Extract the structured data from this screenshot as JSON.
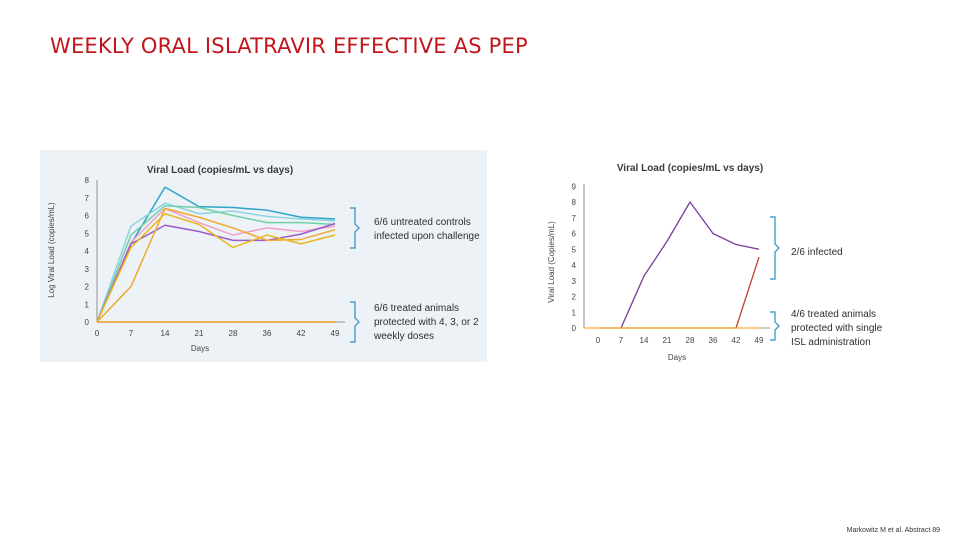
{
  "slide": {
    "title": "WEEKLY ORAL ISLATRAVIR EFFECTIVE AS PEP",
    "citation": "Markowitz M et al. Abstract 89"
  },
  "chart_data": [
    {
      "type": "line",
      "title": "Viral Load (copies/mL vs days)",
      "xlabel": "Days",
      "ylabel": "Log Viral Load (copies/mL)",
      "x": [
        0,
        7,
        14,
        21,
        28,
        36,
        42,
        49
      ],
      "yticks": [
        0,
        1,
        2,
        3,
        4,
        5,
        6,
        7,
        8
      ],
      "ylim": [
        0,
        8
      ],
      "grid": false,
      "series": [
        {
          "color": "#2fa3c8",
          "values": [
            0,
            4.4,
            7.6,
            6.5,
            6.45,
            6.3,
            5.9,
            5.8
          ]
        },
        {
          "color": "#8cd3e0",
          "values": [
            0,
            5.4,
            6.7,
            6.1,
            6.25,
            5.95,
            5.8,
            5.7
          ]
        },
        {
          "color": "#6fd1a6",
          "values": [
            0,
            4.9,
            6.55,
            6.45,
            6.0,
            5.6,
            5.6,
            5.5
          ]
        },
        {
          "color": "#f0a0c8",
          "values": [
            0,
            4.5,
            6.4,
            5.6,
            4.9,
            5.3,
            5.1,
            5.4
          ]
        },
        {
          "color": "#9a5cc8",
          "values": [
            0,
            4.4,
            5.45,
            5.1,
            4.6,
            4.6,
            4.95,
            5.55
          ]
        },
        {
          "color": "#f0a830",
          "values": [
            0,
            2.0,
            6.4,
            5.9,
            5.3,
            4.6,
            4.65,
            5.2
          ]
        },
        {
          "color": "#e8b820",
          "values": [
            0,
            4.2,
            6.1,
            5.5,
            4.2,
            4.9,
            4.4,
            4.9
          ]
        },
        {
          "color": "#e89820",
          "values": [
            0,
            0,
            0,
            0,
            0,
            0,
            0,
            0
          ]
        }
      ],
      "annotations": [
        {
          "lines": [
            "6/6 untreated controls",
            "infected upon challenge"
          ]
        },
        {
          "lines": [
            "6/6 treated animals",
            "protected with 4, 3, or 2",
            "weekly doses"
          ]
        }
      ]
    },
    {
      "type": "line",
      "title": "Viral Load (copies/mL vs days)",
      "xlabel": "Days",
      "ylabel": "Viral Load (Copies/mL)",
      "x": [
        0,
        7,
        14,
        21,
        28,
        36,
        42,
        49
      ],
      "yticks": [
        0,
        1,
        2,
        3,
        4,
        5,
        6,
        7,
        8,
        9
      ],
      "ylim": [
        0,
        9
      ],
      "grid": false,
      "series": [
        {
          "color": "#7a3a9a",
          "values": [
            0,
            0,
            3.3,
            5.5,
            8.0,
            6.0,
            5.3,
            5.0
          ]
        },
        {
          "color": "#c0432a",
          "values": [
            0,
            0,
            0,
            0,
            0,
            0,
            0,
            4.5
          ]
        },
        {
          "color": "#f5b030",
          "values": [
            0,
            0,
            0,
            0,
            0,
            0,
            0,
            0
          ]
        }
      ],
      "annotations": [
        {
          "lines": [
            "2/6 infected"
          ]
        },
        {
          "lines": [
            "4/6 treated animals",
            "protected with single",
            "ISL administration"
          ]
        }
      ]
    }
  ]
}
